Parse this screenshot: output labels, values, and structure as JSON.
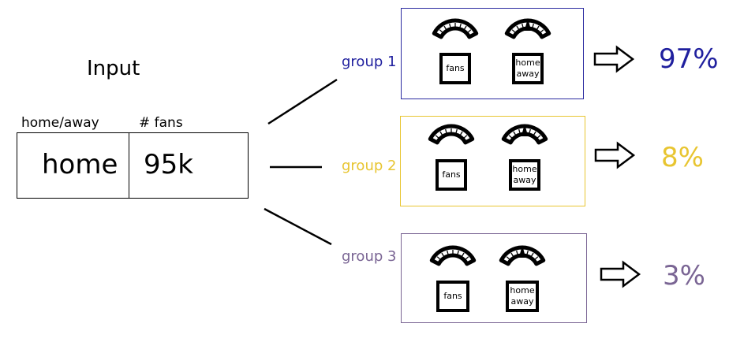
{
  "input": {
    "title": "Input",
    "columns": [
      "home/away",
      "# fans"
    ],
    "values": [
      "home",
      "95k"
    ]
  },
  "groups": [
    {
      "label": "group 1",
      "color": "#1f1f9e",
      "border": "#2b2ba0",
      "meters": [
        "fans",
        "home away"
      ],
      "result": "97%"
    },
    {
      "label": "group 2",
      "color": "#e8c531",
      "border": "#e8c531",
      "meters": [
        "fans",
        "home away"
      ],
      "result": "8%"
    },
    {
      "label": "group 3",
      "color": "#7a6594",
      "border": "#7a6594",
      "meters": [
        "fans",
        "home away"
      ],
      "result": "3%"
    }
  ],
  "icons": {
    "gauge": "gauge-icon",
    "arrow": "arrow-right-icon"
  }
}
